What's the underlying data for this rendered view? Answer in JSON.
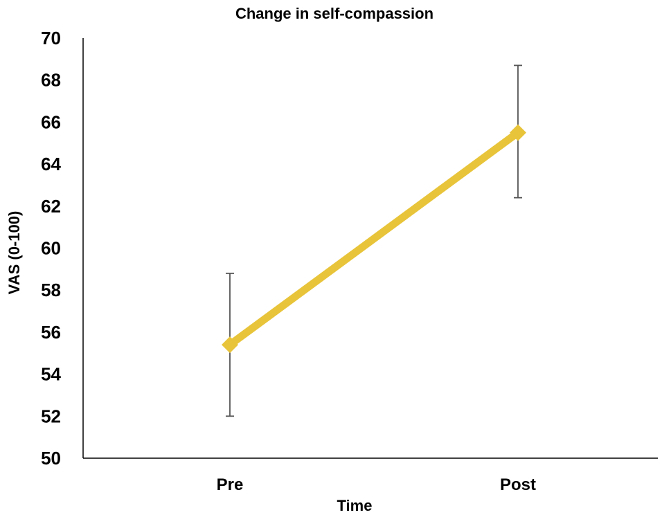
{
  "chart_data": {
    "type": "line",
    "title": "Change in self-compassion",
    "xlabel": "Time",
    "ylabel": "VAS (0-100)",
    "categories": [
      "Pre",
      "Post"
    ],
    "series": [
      {
        "values": [
          55.4,
          65.5
        ],
        "error_low": [
          52.0,
          62.4
        ],
        "error_high": [
          58.8,
          68.7
        ],
        "color": "#E8C43A"
      }
    ],
    "ylim": [
      50,
      70
    ],
    "yticks": [
      "50",
      "52",
      "54",
      "56",
      "58",
      "60",
      "62",
      "64",
      "66",
      "68",
      "70"
    ],
    "grid": false,
    "legend": "none",
    "errorbar_color": "#555555",
    "axis_color": "#000000"
  }
}
